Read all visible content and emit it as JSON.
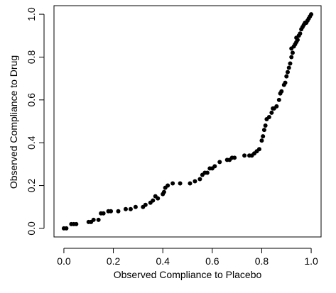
{
  "chart_data": {
    "type": "scatter",
    "title": "",
    "xlabel": "Observed Compliance to Placebo",
    "ylabel": "Observed Compliance to Drug",
    "xlim": [
      -0.04,
      1.04
    ],
    "ylim": [
      -0.04,
      1.04
    ],
    "x_ticks": [
      "0.0",
      "0.2",
      "0.4",
      "0.6",
      "0.8",
      "1.0"
    ],
    "y_ticks": [
      "0.0",
      "0.2",
      "0.4",
      "0.6",
      "0.8",
      "1.0"
    ],
    "grid": false,
    "legend": "none",
    "box": true,
    "marker_color": "#000000",
    "series": [
      {
        "x": [
          0.0,
          0.01,
          0.03,
          0.04,
          0.05,
          0.1,
          0.11,
          0.12,
          0.14,
          0.15,
          0.16,
          0.18,
          0.19,
          0.22,
          0.25,
          0.27,
          0.29,
          0.32,
          0.33,
          0.35,
          0.36,
          0.37,
          0.38,
          0.4,
          0.405,
          0.41,
          0.42,
          0.44,
          0.47,
          0.51,
          0.53,
          0.55,
          0.56,
          0.57,
          0.58,
          0.59,
          0.6,
          0.61,
          0.63,
          0.66,
          0.67,
          0.68,
          0.69,
          0.73,
          0.75,
          0.76,
          0.77,
          0.78,
          0.79,
          0.8,
          0.805,
          0.81,
          0.815,
          0.82,
          0.83,
          0.84,
          0.845,
          0.85,
          0.86,
          0.87,
          0.875,
          0.88,
          0.89,
          0.895,
          0.9,
          0.905,
          0.91,
          0.915,
          0.92,
          0.925,
          0.93,
          0.935,
          0.94,
          0.945,
          0.95,
          0.955,
          0.96,
          0.965,
          0.97,
          0.975,
          0.98,
          0.985,
          0.99,
          0.995,
          1.0,
          0.92,
          0.94
        ],
        "y": [
          0.0,
          0.0,
          0.02,
          0.02,
          0.02,
          0.03,
          0.03,
          0.04,
          0.04,
          0.07,
          0.07,
          0.08,
          0.08,
          0.08,
          0.09,
          0.09,
          0.1,
          0.1,
          0.11,
          0.12,
          0.13,
          0.15,
          0.14,
          0.16,
          0.17,
          0.19,
          0.2,
          0.21,
          0.21,
          0.21,
          0.22,
          0.23,
          0.25,
          0.26,
          0.26,
          0.28,
          0.28,
          0.29,
          0.31,
          0.32,
          0.32,
          0.33,
          0.33,
          0.34,
          0.34,
          0.34,
          0.35,
          0.36,
          0.37,
          0.41,
          0.43,
          0.46,
          0.48,
          0.51,
          0.52,
          0.54,
          0.56,
          0.56,
          0.57,
          0.6,
          0.63,
          0.64,
          0.67,
          0.68,
          0.71,
          0.73,
          0.75,
          0.77,
          0.8,
          0.82,
          0.85,
          0.86,
          0.87,
          0.88,
          0.9,
          0.91,
          0.93,
          0.94,
          0.95,
          0.96,
          0.96,
          0.97,
          0.98,
          0.99,
          1.0,
          0.84,
          0.89
        ]
      }
    ]
  }
}
